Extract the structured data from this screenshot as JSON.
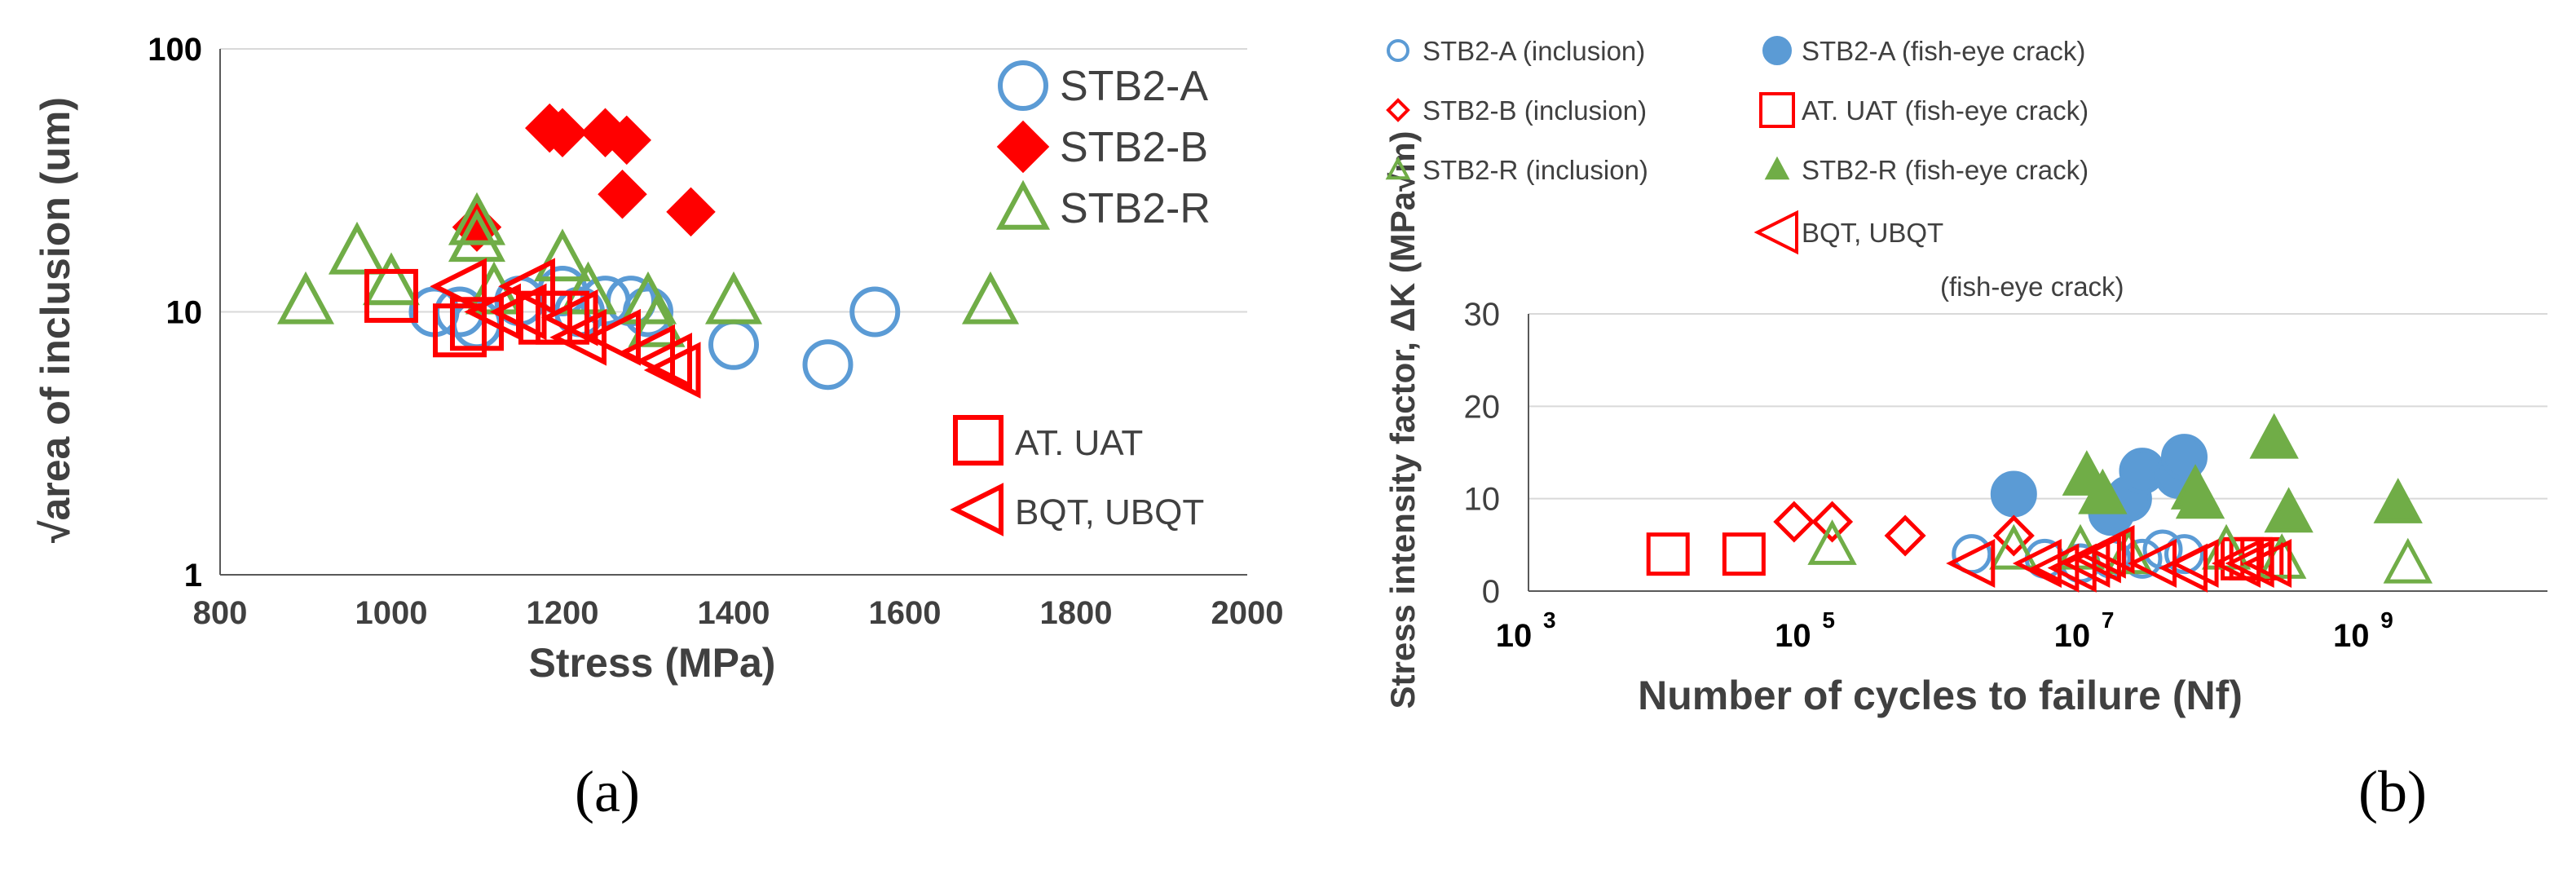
{
  "captions": [
    "(a)",
    "(b)"
  ],
  "colors": {
    "blue": "#5b9bd5",
    "red": "#ff0000",
    "green": "#70ad47",
    "grid": "#d9d9d9",
    "axis": "#595959"
  },
  "chart_data": [
    {
      "type": "scatter",
      "title": "",
      "xlabel": "Stress (MPa)",
      "ylabel": "√area of inclusion (um)",
      "xscale": "linear",
      "yscale": "log",
      "xlim": [
        800,
        2000
      ],
      "ylim": [
        1,
        100
      ],
      "xticks": [
        800,
        1000,
        1200,
        1400,
        1600,
        1800,
        2000
      ],
      "xtick_labels": [
        "800",
        "1000",
        "1200",
        "1400",
        "1600",
        "1800",
        "2000"
      ],
      "yticks": [
        1,
        10,
        100
      ],
      "ytick_labels": [
        "1",
        "10",
        "100"
      ],
      "grid": "horizontal",
      "legend_position": "right",
      "series": [
        {
          "name": "STB2-A",
          "marker": "circle-open",
          "color": "#5b9bd5",
          "legend": true,
          "points": [
            [
              1050,
              10
            ],
            [
              1080,
              10
            ],
            [
              1100,
              9
            ],
            [
              1150,
              11
            ],
            [
              1200,
              12
            ],
            [
              1220,
              10
            ],
            [
              1250,
              11
            ],
            [
              1280,
              11
            ],
            [
              1300,
              10
            ],
            [
              1400,
              7.5
            ],
            [
              1510,
              6.3
            ],
            [
              1565,
              10
            ]
          ]
        },
        {
          "name": "STB2-B",
          "marker": "diamond-filled",
          "color": "#ff0000",
          "legend": true,
          "points": [
            [
              1100,
              21
            ],
            [
              1185,
              50
            ],
            [
              1200,
              48
            ],
            [
              1250,
              48
            ],
            [
              1275,
              45
            ],
            [
              1270,
              28
            ],
            [
              1350,
              24
            ]
          ]
        },
        {
          "name": "STB2-R",
          "marker": "triangle-open",
          "color": "#70ad47",
          "legend": true,
          "points": [
            [
              900,
              11
            ],
            [
              960,
              17
            ],
            [
              1000,
              13
            ],
            [
              1100,
              19
            ],
            [
              1100,
              22
            ],
            [
              1120,
              12
            ],
            [
              1200,
              16
            ],
            [
              1230,
              12
            ],
            [
              1300,
              11
            ],
            [
              1310,
              9
            ],
            [
              1400,
              11
            ],
            [
              1700,
              11
            ]
          ]
        },
        {
          "name": "AT. UAT",
          "marker": "square-open",
          "color": "#ff0000",
          "legend": true,
          "points": [
            [
              1000,
              11.5
            ],
            [
              1080,
              8.5
            ],
            [
              1100,
              9
            ],
            [
              1180,
              9.5
            ],
            [
              1200,
              9.5
            ]
          ]
        },
        {
          "name": "BQT, UBQT",
          "marker": "triangle-left-open",
          "color": "#ff0000",
          "legend": true,
          "points": [
            [
              1080,
              12.5
            ],
            [
              1120,
              10
            ],
            [
              1150,
              10
            ],
            [
              1160,
              12.5
            ],
            [
              1210,
              9.5
            ],
            [
              1220,
              8
            ],
            [
              1260,
              8
            ],
            [
              1300,
              7
            ],
            [
              1320,
              6.5
            ],
            [
              1330,
              6
            ]
          ]
        }
      ]
    },
    {
      "type": "scatter",
      "title": "",
      "xlabel": "Number of cycles to failure (Nf)",
      "ylabel": "Stress intensity factor, ΔK (MPa√m)",
      "xscale": "log",
      "yscale": "linear",
      "xlim": [
        1000,
        20000000000
      ],
      "ylim": [
        0,
        30
      ],
      "xticks": [
        1000,
        100000,
        10000000,
        1000000000
      ],
      "xtick_labels": [
        [
          "10",
          "3"
        ],
        [
          "10",
          "5"
        ],
        [
          "10",
          "7"
        ],
        [
          "10",
          "9"
        ]
      ],
      "yticks": [
        0,
        10,
        20,
        30
      ],
      "ytick_labels": [
        "0",
        "10",
        "20",
        "30"
      ],
      "grid": "horizontal",
      "legend_position": "top",
      "series": [
        {
          "name": "STB2-A (inclusion)",
          "marker": "circle-open",
          "color": "#5b9bd5",
          "legend": true,
          "points": [
            [
              1500000,
              4
            ],
            [
              5000000,
              3.5
            ],
            [
              9000000,
              3
            ],
            [
              15000000,
              3.5
            ],
            [
              25000000,
              3.5
            ],
            [
              35000000,
              4.5
            ],
            [
              50000000,
              4
            ]
          ]
        },
        {
          "name": "STB2-A (fish-eye crack)",
          "marker": "circle-filled",
          "color": "#5b9bd5",
          "legend": true,
          "points": [
            [
              3000000,
              10.5
            ],
            [
              15000000,
              8.5
            ],
            [
              20000000,
              10
            ],
            [
              25000000,
              13
            ],
            [
              45000000,
              12.5
            ],
            [
              50000000,
              14.5
            ]
          ]
        },
        {
          "name": "STB2-B (inclusion)",
          "marker": "diamond-open",
          "color": "#ff0000",
          "legend": true,
          "points": [
            [
              80000,
              7.5
            ],
            [
              150000,
              7.5
            ],
            [
              500000,
              6
            ],
            [
              3000000,
              6
            ]
          ]
        },
        {
          "name": "AT. UAT (fish-eye crack)",
          "marker": "square-open",
          "color": "#ff0000",
          "legend": true,
          "points": [
            [
              10000,
              4
            ],
            [
              35000,
              4
            ],
            [
              130000000,
              3.5
            ],
            [
              150000000,
              3.5
            ],
            [
              180000000,
              3.5
            ]
          ]
        },
        {
          "name": "STB2-R (inclusion)",
          "marker": "triangle-open",
          "color": "#70ad47",
          "legend": true,
          "points": [
            [
              150000,
              5
            ],
            [
              3000000,
              4.5
            ],
            [
              9000000,
              4.5
            ],
            [
              20000000,
              4
            ],
            [
              100000000,
              4.5
            ],
            [
              250000000,
              3.5
            ],
            [
              2000000000,
              3
            ]
          ]
        },
        {
          "name": "STB2-R (fish-eye crack)",
          "marker": "triangle-filled",
          "color": "#70ad47",
          "legend": true,
          "points": [
            [
              10000000,
              12.5
            ],
            [
              13000000,
              10.5
            ],
            [
              60000000,
              11
            ],
            [
              65000000,
              10
            ],
            [
              220000000,
              16.5
            ],
            [
              280000000,
              8.5
            ],
            [
              1700000000,
              9.5
            ]
          ]
        },
        {
          "name": "BQT, UBQT",
          "legend_sub": "(fish-eye crack)",
          "marker": "triangle-left-open",
          "color": "#ff0000",
          "legend": true,
          "points": [
            [
              1500000,
              3
            ],
            [
              4500000,
              3
            ],
            [
              6000000,
              2.5
            ],
            [
              8000000,
              2.5
            ],
            [
              10000000,
              3
            ],
            [
              12000000,
              3.5
            ],
            [
              13000000,
              4
            ],
            [
              15000000,
              4.5
            ],
            [
              30000000,
              3
            ],
            [
              50000000,
              2.5
            ],
            [
              60000000,
              3
            ],
            [
              120000000,
              3
            ],
            [
              150000000,
              3
            ],
            [
              200000000,
              3
            ]
          ]
        }
      ]
    }
  ]
}
